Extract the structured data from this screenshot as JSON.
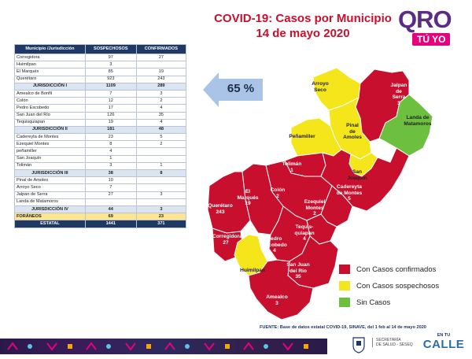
{
  "header": {
    "title_line1": "COVID-19: Casos por Municipio",
    "title_line2": "14 de mayo 2020"
  },
  "logo": {
    "text": "QRO",
    "tag": "TÚ YO"
  },
  "table": {
    "headers": [
      "Municipio /Jurisdicción",
      "SOSPECHOSOS",
      "CONFIRMADOS"
    ],
    "rows": [
      {
        "name": "Corregidora",
        "sospechosos": "97",
        "confirmados": "27",
        "kind": "normal"
      },
      {
        "name": "Huimilpan",
        "sospechosos": "3",
        "confirmados": "",
        "kind": "normal"
      },
      {
        "name": "El Marqués",
        "sospechosos": "85",
        "confirmados": "19",
        "kind": "normal"
      },
      {
        "name": "Querétaro",
        "sospechosos": "923",
        "confirmados": "243",
        "kind": "normal"
      },
      {
        "name": "JURISDICCIÓN I",
        "sospechosos": "1109",
        "confirmados": "289",
        "kind": "sub"
      },
      {
        "name": "Amealco de Bonfil",
        "sospechosos": "7",
        "confirmados": "3",
        "kind": "normal"
      },
      {
        "name": "Colón",
        "sospechosos": "12",
        "confirmados": "2",
        "kind": "normal"
      },
      {
        "name": "Pedro Escobedo",
        "sospechosos": "17",
        "confirmados": "4",
        "kind": "normal"
      },
      {
        "name": "San Juan del Río",
        "sospechosos": "126",
        "confirmados": "35",
        "kind": "normal"
      },
      {
        "name": "Tequisquiapan",
        "sospechosos": "19",
        "confirmados": "4",
        "kind": "normal"
      },
      {
        "name": "JURISDICCIÓN II",
        "sospechosos": "181",
        "confirmados": "48",
        "kind": "sub"
      },
      {
        "name": "Cadereyta de Montes",
        "sospechosos": "23",
        "confirmados": "5",
        "kind": "normal"
      },
      {
        "name": "Ezequiel Montes",
        "sospechosos": "8",
        "confirmados": "2",
        "kind": "normal"
      },
      {
        "name": "peñamiller",
        "sospechosos": "4",
        "confirmados": "",
        "kind": "normal"
      },
      {
        "name": "San Joaquín",
        "sospechosos": "1",
        "confirmados": "",
        "kind": "normal"
      },
      {
        "name": "Tolimán",
        "sospechosos": "3",
        "confirmados": "1",
        "kind": "normal"
      },
      {
        "name": "JURISDICCIÓN III",
        "sospechosos": "38",
        "confirmados": "8",
        "kind": "sub"
      },
      {
        "name": "Pinal de Amoles",
        "sospechosos": "10",
        "confirmados": "",
        "kind": "normal"
      },
      {
        "name": "Arroyo Seco",
        "sospechosos": "7",
        "confirmados": "",
        "kind": "normal"
      },
      {
        "name": "Jalpan de Serra",
        "sospechosos": "27",
        "confirmados": "3",
        "kind": "normal"
      },
      {
        "name": "Landa de Matamoros",
        "sospechosos": "",
        "confirmados": "",
        "kind": "normal"
      },
      {
        "name": "JURISDICCIÓN IV",
        "sospechosos": "44",
        "confirmados": "3",
        "kind": "sub"
      },
      {
        "name": "FORÁNEOS",
        "sospechosos": "69",
        "confirmados": "23",
        "kind": "for"
      },
      {
        "name": "ESTATAL",
        "sospechosos": "1441",
        "confirmados": "371",
        "kind": "est"
      }
    ]
  },
  "percent_callout": "65 %",
  "map": {
    "labels": [
      {
        "key": "arroyo",
        "lines": [
          "Arroyo",
          "Seco"
        ]
      },
      {
        "key": "jalpan",
        "lines": [
          "Jalpan",
          "de",
          "Serra",
          "3"
        ]
      },
      {
        "key": "landa",
        "lines": [
          "Landa de",
          "Matamoros"
        ]
      },
      {
        "key": "pinal",
        "lines": [
          "Pinal",
          "de",
          "Amoles"
        ]
      },
      {
        "key": "penamiller",
        "lines": [
          "Peñamiller"
        ]
      },
      {
        "key": "sanjoaquin",
        "lines": [
          "San Joaquín"
        ]
      },
      {
        "key": "toliman",
        "lines": [
          "Tolimán",
          "1"
        ]
      },
      {
        "key": "cadereyta",
        "lines": [
          "Cadereyta",
          "de Montes",
          "5"
        ]
      },
      {
        "key": "elmarques",
        "lines": [
          "El",
          "Marqués",
          "19"
        ]
      },
      {
        "key": "colon",
        "lines": [
          "Colón",
          "2"
        ]
      },
      {
        "key": "ezequiel",
        "lines": [
          "Ezequiel",
          "Montes",
          "2"
        ]
      },
      {
        "key": "queretaro",
        "lines": [
          "Querétaro",
          "243"
        ]
      },
      {
        "key": "tequis",
        "lines": [
          "Tequis-",
          "quiapan",
          "4"
        ]
      },
      {
        "key": "corregidora",
        "lines": [
          "Corregidora",
          "27"
        ]
      },
      {
        "key": "pedro",
        "lines": [
          "Pedro",
          "Escobedo",
          "4"
        ]
      },
      {
        "key": "huimilpan",
        "lines": [
          "Huimilpan"
        ]
      },
      {
        "key": "sanjuan",
        "lines": [
          "San Juan",
          "del Río",
          "35"
        ]
      },
      {
        "key": "amealco",
        "lines": [
          "Amealco",
          "3"
        ]
      }
    ],
    "colors": {
      "confirmed": "#c8102e",
      "suspected": "#f4e61a",
      "none": "#6cbf3f"
    }
  },
  "legend": [
    {
      "label": "Con Casos confirmados",
      "color": "#c8102e"
    },
    {
      "label": "Con Casos sospechosos",
      "color": "#f4e61a"
    },
    {
      "label": "Sin Casos",
      "color": "#6cbf3f"
    }
  ],
  "footer": {
    "source": "FUENTE: Base de datos estatal COVID-19, SINAVE, del 1 feb al 14 de mayo 2020",
    "secretaria": [
      "SECRETARÍA",
      "DE SALUD - SESEQ"
    ],
    "calle_top": "EN TU",
    "calle_big": "CALLE"
  }
}
